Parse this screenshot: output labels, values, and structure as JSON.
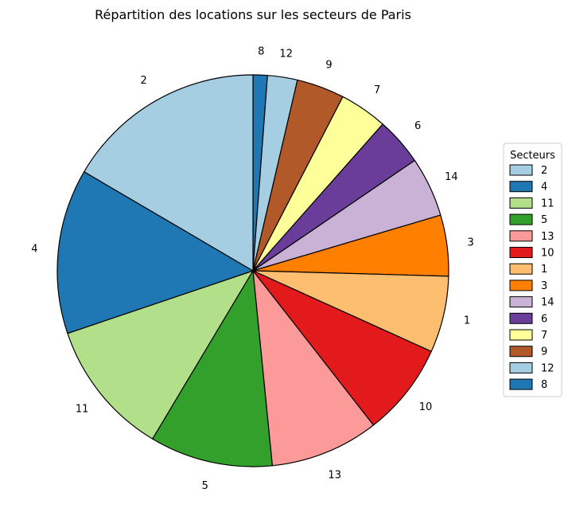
{
  "chart_data": {
    "type": "pie",
    "title": "Répartition des locations sur les secteurs de Paris",
    "start_angle_deg": 90,
    "direction": "clockwise",
    "slices": [
      {
        "label": "8",
        "value": 1.2,
        "color": "#1f78b4"
      },
      {
        "label": "12",
        "value": 2.5,
        "color": "#a6cee3"
      },
      {
        "label": "9",
        "value": 4.0,
        "color": "#b15928"
      },
      {
        "label": "7",
        "value": 4.0,
        "color": "#ffff99"
      },
      {
        "label": "6",
        "value": 4.0,
        "color": "#6a3d9a"
      },
      {
        "label": "14",
        "value": 5.0,
        "color": "#cab2d6"
      },
      {
        "label": "3",
        "value": 5.1,
        "color": "#ff7f00"
      },
      {
        "label": "1",
        "value": 6.4,
        "color": "#fdbf6f"
      },
      {
        "label": "10",
        "value": 7.8,
        "color": "#e31a1c"
      },
      {
        "label": "13",
        "value": 9.1,
        "color": "#fb9a99"
      },
      {
        "label": "5",
        "value": 10.3,
        "color": "#33a02c"
      },
      {
        "label": "11",
        "value": 11.4,
        "color": "#b2df8a"
      },
      {
        "label": "4",
        "value": 13.8,
        "color": "#1f78b4"
      },
      {
        "label": "2",
        "value": 16.8,
        "color": "#a6cee3"
      }
    ],
    "legend": {
      "title": "Secteurs",
      "placement": "right",
      "entries": [
        "2",
        "4",
        "11",
        "5",
        "13",
        "10",
        "1",
        "3",
        "14",
        "6",
        "7",
        "9",
        "12",
        "8"
      ]
    }
  }
}
